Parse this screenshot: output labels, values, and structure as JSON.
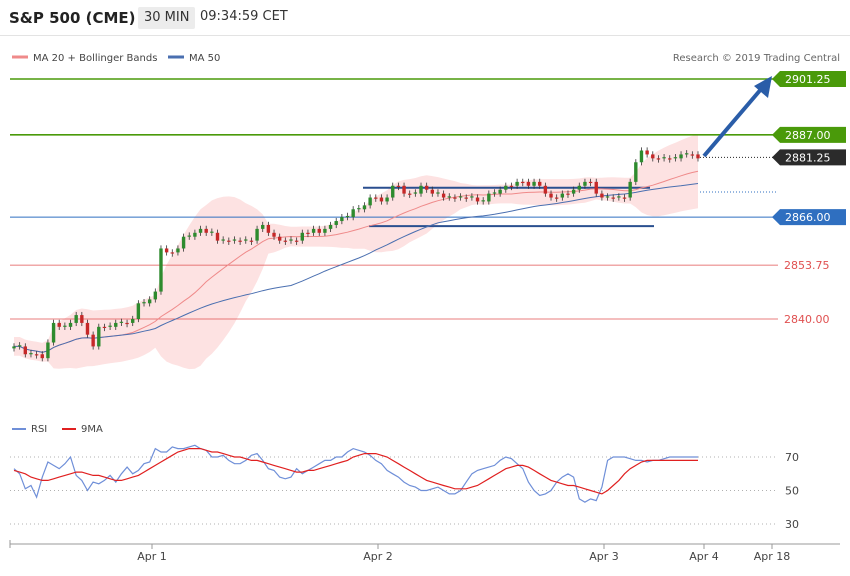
{
  "header": {
    "symbol": "S&P 500 (CME)",
    "timeframe": "30 MIN",
    "time": "09:34:59 CET"
  },
  "legend": {
    "ma20_label": "MA 20 + Bollinger Bands",
    "ma50_label": "MA 50",
    "credit": "Research © 2019 Trading Central",
    "rsi_label": "RSI",
    "rsi9_label": "9MA"
  },
  "colors": {
    "green": "#4a9a0a",
    "blue": "#2f6fc0",
    "red": "#e05050",
    "arrow": "#2a5da8",
    "band": "#fde2e2",
    "ma20": "#ef8a8a",
    "ma50": "#4a6fb0",
    "candle_up": "#2e8b2e",
    "candle_down": "#c62828",
    "rsi": "#6f8fd8",
    "rsi_ma": "#e02020"
  },
  "chart_data": [
    {
      "type": "candlestick",
      "title": "S&P 500 (CME)",
      "ylim": [
        2825,
        2905
      ],
      "x_ticks": [
        "Apr 1",
        "Apr 2",
        "Apr 3",
        "Apr 4",
        "Apr 18"
      ],
      "levels": [
        {
          "value": 2901.25,
          "label": "2901.25",
          "style": "resistance"
        },
        {
          "value": 2887.0,
          "label": "2887.00",
          "style": "resistance"
        },
        {
          "value": 2881.25,
          "label": "2881.25",
          "style": "last"
        },
        {
          "value": 2866.0,
          "label": "2866.00",
          "style": "pivot"
        },
        {
          "value": 2853.75,
          "label": "2853.75",
          "style": "support"
        },
        {
          "value": 2840.0,
          "label": "2840.00",
          "style": "support"
        }
      ],
      "close": [
        2833,
        2833,
        2831,
        2831,
        2831,
        2830,
        2834,
        2839,
        2838,
        2838,
        2839,
        2841,
        2839,
        2836,
        2833,
        2838,
        2838,
        2838,
        2839,
        2839,
        2839,
        2840,
        2844,
        2844,
        2845,
        2847,
        2858,
        2857,
        2857,
        2858,
        2861,
        2861,
        2862,
        2863,
        2862,
        2862,
        2860,
        2860,
        2860,
        2860,
        2860,
        2860,
        2860,
        2863,
        2864,
        2862,
        2861,
        2860,
        2860,
        2860,
        2860,
        2862,
        2862,
        2863,
        2862,
        2863,
        2864,
        2865,
        2866,
        2866,
        2868,
        2868,
        2869,
        2871,
        2871,
        2870,
        2871,
        2874,
        2874,
        2872,
        2872,
        2872,
        2874,
        2873,
        2872,
        2872,
        2871,
        2871,
        2871,
        2871,
        2871,
        2871,
        2870,
        2870,
        2872,
        2872,
        2873,
        2874,
        2874,
        2875,
        2875,
        2874,
        2875,
        2874,
        2872,
        2871,
        2871,
        2872,
        2872,
        2873,
        2874,
        2875,
        2875,
        2872,
        2871,
        2871,
        2871,
        2871,
        2871,
        2875,
        2880,
        2883,
        2882,
        2881,
        2881,
        2881,
        2881,
        2881,
        2882,
        2882,
        2882,
        2881
      ]
    },
    {
      "type": "line",
      "title": "RSI",
      "ylim": [
        20,
        80
      ],
      "yticks": [
        30,
        50,
        70
      ],
      "series": [
        {
          "name": "RSI",
          "values": [
            63,
            60,
            51,
            53,
            46,
            58,
            67,
            65,
            63,
            66,
            70,
            59,
            56,
            50,
            55,
            54,
            56,
            59,
            55,
            60,
            64,
            60,
            62,
            66,
            67,
            75,
            73,
            73,
            76,
            75,
            75,
            76,
            77,
            75,
            74,
            70,
            70,
            71,
            68,
            66,
            66,
            68,
            71,
            72,
            68,
            63,
            62,
            58,
            57,
            58,
            63,
            60,
            62,
            64,
            66,
            68,
            68,
            70,
            70,
            73,
            75,
            74,
            73,
            71,
            68,
            66,
            62,
            60,
            58,
            55,
            53,
            52,
            50,
            50,
            51,
            52,
            50,
            48,
            48,
            50,
            55,
            60,
            62,
            63,
            64,
            65,
            68,
            70,
            69,
            66,
            63,
            55,
            50,
            47,
            48,
            50,
            55,
            58,
            60,
            58,
            45,
            43,
            45,
            44,
            52,
            68,
            70,
            70,
            70,
            69,
            68,
            68,
            67,
            68,
            68,
            69,
            70,
            70,
            70,
            70,
            70,
            70
          ]
        },
        {
          "name": "9MA",
          "values": [
            62,
            61,
            60,
            58,
            57,
            56,
            56,
            57,
            58,
            59,
            60,
            61,
            61,
            60,
            59,
            59,
            58,
            57,
            56,
            56,
            57,
            58,
            59,
            61,
            63,
            65,
            67,
            69,
            71,
            73,
            74,
            75,
            75,
            75,
            74,
            73,
            73,
            72,
            71,
            70,
            70,
            69,
            68,
            68,
            67,
            66,
            65,
            64,
            63,
            62,
            61,
            61,
            62,
            62,
            63,
            64,
            65,
            66,
            67,
            68,
            70,
            71,
            72,
            72,
            72,
            71,
            70,
            68,
            66,
            64,
            62,
            60,
            58,
            56,
            55,
            54,
            53,
            52,
            51,
            51,
            51,
            52,
            53,
            55,
            57,
            59,
            61,
            63,
            64,
            65,
            65,
            64,
            62,
            60,
            58,
            56,
            55,
            54,
            53,
            53,
            52,
            51,
            50,
            49,
            48,
            50,
            53,
            56,
            60,
            63,
            65,
            67,
            68,
            68,
            68,
            68,
            68,
            68,
            68,
            68,
            68,
            68
          ]
        }
      ]
    }
  ]
}
